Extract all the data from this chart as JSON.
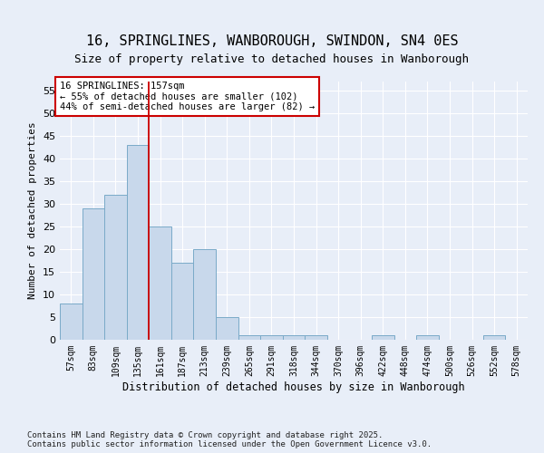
{
  "title1": "16, SPRINGLINES, WANBOROUGH, SWINDON, SN4 0ES",
  "title2": "Size of property relative to detached houses in Wanborough",
  "xlabel": "Distribution of detached houses by size in Wanborough",
  "ylabel": "Number of detached properties",
  "categories": [
    "57sqm",
    "83sqm",
    "109sqm",
    "135sqm",
    "161sqm",
    "187sqm",
    "213sqm",
    "239sqm",
    "265sqm",
    "291sqm",
    "318sqm",
    "344sqm",
    "370sqm",
    "396sqm",
    "422sqm",
    "448sqm",
    "474sqm",
    "500sqm",
    "526sqm",
    "552sqm",
    "578sqm"
  ],
  "values": [
    8,
    29,
    32,
    43,
    25,
    17,
    20,
    5,
    1,
    1,
    1,
    1,
    0,
    0,
    1,
    0,
    1,
    0,
    0,
    1,
    0
  ],
  "bar_color": "#c8d8eb",
  "bar_edge_color": "#7aaac8",
  "vline_x": 3.5,
  "vline_color": "#cc0000",
  "annotation_text": "16 SPRINGLINES: 157sqm\n← 55% of detached houses are smaller (102)\n44% of semi-detached houses are larger (82) →",
  "annotation_box_color": "#ffffff",
  "annotation_box_edge_color": "#cc0000",
  "ylim": [
    0,
    57
  ],
  "yticks": [
    0,
    5,
    10,
    15,
    20,
    25,
    30,
    35,
    40,
    45,
    50,
    55
  ],
  "footer": "Contains HM Land Registry data © Crown copyright and database right 2025.\nContains public sector information licensed under the Open Government Licence v3.0.",
  "bg_color": "#e8eef8",
  "plot_bg_color": "#e8eef8",
  "grid_color": "#ffffff",
  "title_fontsize": 11,
  "subtitle_fontsize": 9
}
